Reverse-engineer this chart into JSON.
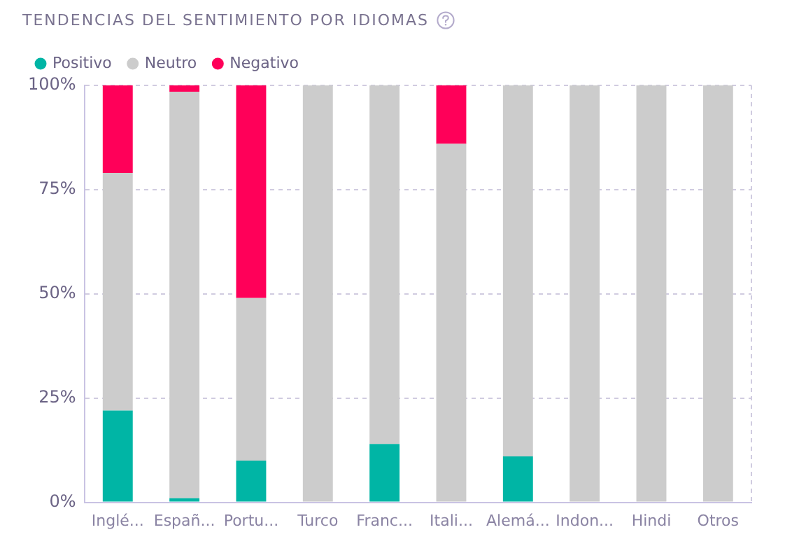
{
  "chart_data": {
    "type": "bar",
    "title": "TENDENCIAS DEL SENTIMIENTO POR IDIOMAS",
    "categories": [
      "Inglé...",
      "Españ...",
      "Portu...",
      "Turco",
      "Franc...",
      "Itali...",
      "Alemá...",
      "Indon...",
      "Hindi",
      "Otros"
    ],
    "series": [
      {
        "name": "Positivo",
        "color": "#00b5a5",
        "values": [
          22,
          1,
          10,
          0,
          14,
          0,
          11,
          0,
          0,
          0
        ]
      },
      {
        "name": "Neutro",
        "color": "#cccccc",
        "values": [
          57,
          97.5,
          39,
          100,
          86,
          86,
          89,
          100,
          100,
          100
        ]
      },
      {
        "name": "Negativo",
        "color": "#ff0059",
        "values": [
          21,
          1.5,
          51,
          0,
          0,
          14,
          0,
          0,
          0,
          0
        ]
      }
    ],
    "stacked": true,
    "ylim": [
      0,
      100
    ],
    "yticks": [
      {
        "value": 0,
        "label": "0%"
      },
      {
        "value": 25,
        "label": "25%"
      },
      {
        "value": 50,
        "label": "50%"
      },
      {
        "value": 75,
        "label": "75%"
      },
      {
        "value": 100,
        "label": "100%"
      }
    ],
    "grid": "y",
    "legend": "top left"
  }
}
